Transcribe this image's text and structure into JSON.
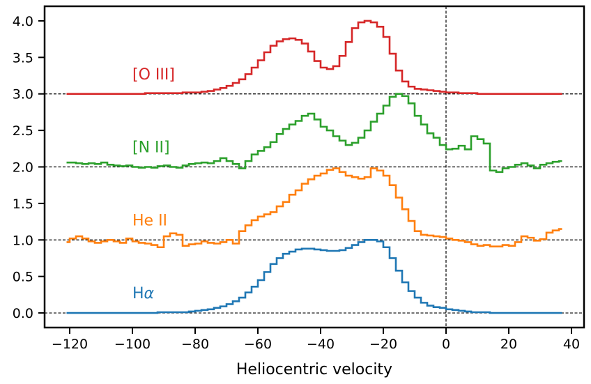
{
  "chart_data": {
    "type": "line",
    "drawstyle": "steps-mid",
    "title": "",
    "xlabel": "Heliocentric velocity",
    "ylabel": "",
    "xlim": [
      -128,
      44
    ],
    "ylim": [
      -0.2,
      4.2
    ],
    "xticks": [
      -120,
      -100,
      -80,
      -60,
      -40,
      -20,
      0,
      20,
      40
    ],
    "xtick_labels": [
      "−120",
      "−100",
      "−80",
      "−60",
      "−40",
      "−20",
      "0",
      "20",
      "40"
    ],
    "yticks": [
      0.0,
      0.5,
      1.0,
      1.5,
      2.0,
      2.5,
      3.0,
      3.5,
      4.0
    ],
    "ytick_labels": [
      "0.0",
      "0.5",
      "1.0",
      "1.5",
      "2.0",
      "2.5",
      "3.0",
      "3.5",
      "4.0"
    ],
    "grid": false,
    "legend": "none",
    "reference_lines": {
      "horizontal": [
        0.0,
        1.0,
        2.0,
        3.0
      ],
      "vertical": [
        0
      ],
      "style": "dashed",
      "color": "#000000"
    },
    "x": [
      -121,
      -119,
      -117,
      -115,
      -113,
      -111,
      -109,
      -107,
      -105,
      -103,
      -101,
      -99,
      -97,
      -95,
      -93,
      -91,
      -89,
      -87,
      -85,
      -83,
      -81,
      -79,
      -77,
      -75,
      -73,
      -71,
      -69,
      -67,
      -65,
      -63,
      -61,
      -59,
      -57,
      -55,
      -53,
      -51,
      -49,
      -47,
      -45,
      -43,
      -41,
      -39,
      -37,
      -35,
      -33,
      -31,
      -29,
      -27,
      -25,
      -23,
      -21,
      -19,
      -17,
      -15,
      -13,
      -11,
      -9,
      -7,
      -5,
      -3,
      -1,
      1,
      3,
      5,
      7,
      9,
      11,
      13,
      15,
      17,
      19,
      21,
      23,
      25,
      27,
      29,
      31,
      33,
      35,
      37
    ],
    "series": [
      {
        "name": "Hα",
        "label_prefix": "H",
        "label_italic": "α",
        "color": "#1f77b4",
        "values": [
          0.0,
          0.0,
          0.0,
          0.0,
          0.0,
          0.0,
          0.0,
          0.0,
          0.0,
          0.0,
          0.0,
          0.0,
          0.0,
          0.0,
          0.0,
          0.01,
          0.01,
          0.01,
          0.01,
          0.01,
          0.02,
          0.03,
          0.04,
          0.05,
          0.07,
          0.09,
          0.12,
          0.16,
          0.21,
          0.28,
          0.36,
          0.45,
          0.56,
          0.67,
          0.75,
          0.81,
          0.84,
          0.87,
          0.88,
          0.88,
          0.87,
          0.86,
          0.85,
          0.85,
          0.86,
          0.89,
          0.93,
          0.97,
          1.0,
          1.0,
          0.98,
          0.9,
          0.75,
          0.58,
          0.42,
          0.3,
          0.21,
          0.14,
          0.1,
          0.08,
          0.07,
          0.05,
          0.04,
          0.03,
          0.02,
          0.01,
          0.01,
          0.01,
          0.0,
          0.0,
          0.0,
          0.0,
          0.0,
          0.0,
          0.0,
          0.0,
          0.0,
          0.0,
          0.0,
          0.0
        ]
      },
      {
        "name": "He II",
        "color": "#ff7f0e",
        "values": [
          0.97,
          1.02,
          1.05,
          1.02,
          0.98,
          0.96,
          0.98,
          1.0,
          0.98,
          0.96,
          1.02,
          0.98,
          0.96,
          0.95,
          0.93,
          0.9,
          1.05,
          1.09,
          1.07,
          0.92,
          0.94,
          0.95,
          0.98,
          0.96,
          0.95,
          0.97,
          1.0,
          0.95,
          1.12,
          1.2,
          1.27,
          1.32,
          1.35,
          1.38,
          1.46,
          1.52,
          1.62,
          1.68,
          1.77,
          1.83,
          1.88,
          1.91,
          1.96,
          1.98,
          1.93,
          1.88,
          1.86,
          1.84,
          1.86,
          1.98,
          1.95,
          1.88,
          1.75,
          1.58,
          1.42,
          1.26,
          1.12,
          1.07,
          1.06,
          1.05,
          1.04,
          1.02,
          1.0,
          0.99,
          0.97,
          0.94,
          0.92,
          0.93,
          0.91,
          0.91,
          0.93,
          0.92,
          0.97,
          1.05,
          1.03,
          0.99,
          1.01,
          1.1,
          1.13,
          1.15
        ]
      },
      {
        "name": "[N II]",
        "color": "#2ca02c",
        "values": [
          2.06,
          2.06,
          2.05,
          2.04,
          2.05,
          2.04,
          2.06,
          2.03,
          2.02,
          2.01,
          2.02,
          2.0,
          1.99,
          2.0,
          1.99,
          2.01,
          2.02,
          2.0,
          1.99,
          2.02,
          2.04,
          2.05,
          2.06,
          2.05,
          2.08,
          2.12,
          2.08,
          2.04,
          1.98,
          2.08,
          2.17,
          2.22,
          2.27,
          2.34,
          2.45,
          2.52,
          2.58,
          2.63,
          2.7,
          2.73,
          2.65,
          2.55,
          2.5,
          2.42,
          2.36,
          2.3,
          2.33,
          2.4,
          2.5,
          2.62,
          2.73,
          2.84,
          2.96,
          3.0,
          2.97,
          2.87,
          2.7,
          2.58,
          2.46,
          2.4,
          2.3,
          2.24,
          2.25,
          2.29,
          2.24,
          2.42,
          2.38,
          2.32,
          1.95,
          1.93,
          1.98,
          2.0,
          2.03,
          2.05,
          2.02,
          1.98,
          2.03,
          2.05,
          2.07,
          2.08
        ]
      },
      {
        "name": "[O III]",
        "color": "#d62728",
        "values": [
          3.0,
          3.0,
          3.0,
          3.0,
          3.0,
          3.0,
          3.0,
          3.0,
          3.0,
          3.0,
          3.0,
          3.0,
          3.0,
          3.01,
          3.01,
          3.01,
          3.01,
          3.01,
          3.01,
          3.02,
          3.02,
          3.02,
          3.03,
          3.04,
          3.06,
          3.08,
          3.11,
          3.15,
          3.2,
          3.27,
          3.36,
          3.46,
          3.57,
          3.66,
          3.72,
          3.75,
          3.76,
          3.74,
          3.69,
          3.58,
          3.45,
          3.36,
          3.34,
          3.38,
          3.52,
          3.71,
          3.9,
          3.98,
          4.0,
          3.98,
          3.92,
          3.78,
          3.55,
          3.32,
          3.17,
          3.1,
          3.07,
          3.06,
          3.05,
          3.04,
          3.03,
          3.02,
          3.02,
          3.01,
          3.01,
          3.01,
          3.0,
          3.0,
          3.0,
          3.0,
          3.0,
          3.0,
          3.0,
          3.0,
          3.0,
          3.0,
          3.0,
          3.0,
          3.0,
          3.0
        ]
      }
    ],
    "series_labels": [
      {
        "series": 0,
        "x": -100,
        "y": 0.2
      },
      {
        "series": 1,
        "x": -100,
        "y": 1.2
      },
      {
        "series": 2,
        "x": -100,
        "y": 2.2
      },
      {
        "series": 3,
        "x": -100,
        "y": 3.2
      }
    ]
  }
}
